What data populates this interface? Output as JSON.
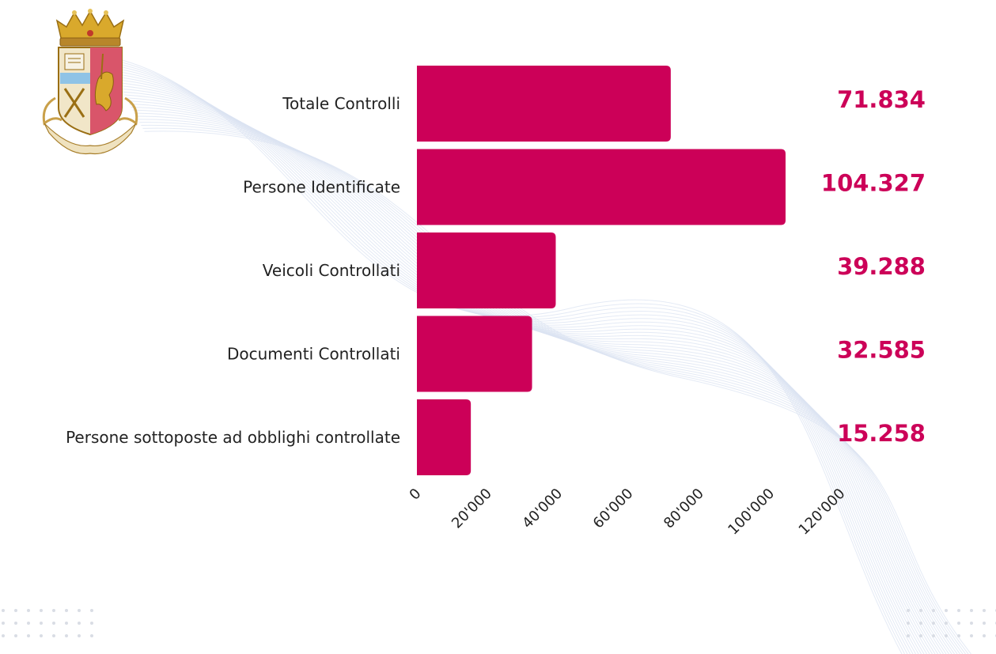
{
  "colors": {
    "bar": "#cc0058",
    "value_text": "#cc0058",
    "label_text": "#222222",
    "tick_text": "#222222",
    "wave_lines": "#dbe3f2",
    "dots": "#d9dde5"
  },
  "emblem": {
    "icon": "polizia-di-stato-coat-of-arms-icon"
  },
  "chart_data": {
    "type": "bar",
    "orientation": "horizontal",
    "categories": [
      "Totale Controlli",
      "Persone Identificate",
      "Veicoli Controllati",
      "Documenti Controllati",
      "Persone sottoposte ad obblighi controllate"
    ],
    "values": [
      71834,
      104327,
      39288,
      32585,
      15258
    ],
    "value_labels": [
      "71.834",
      "104.327",
      "39.288",
      "32.585",
      "15.258"
    ],
    "xlim": [
      0,
      120000
    ],
    "x_ticks": [
      0,
      20000,
      40000,
      60000,
      80000,
      100000,
      120000
    ],
    "x_tick_labels": [
      "0",
      "20'000",
      "40'000",
      "60'000",
      "80'000",
      "100'000",
      "120'000"
    ],
    "grid": false,
    "legend": "none"
  }
}
